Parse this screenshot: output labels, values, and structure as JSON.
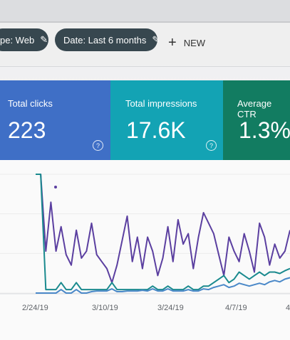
{
  "filters": {
    "type_chip": "pe: Web",
    "date_chip": "Date: Last 6 months",
    "new_button": "NEW"
  },
  "cards": [
    {
      "label": "Total clicks",
      "value": "223",
      "color": "#3f6fc6"
    },
    {
      "label": "Total impressions",
      "value": "17.6K",
      "color": "#13a3b4"
    },
    {
      "label": "Average CTR",
      "value": "1.3%",
      "color": "#127c61"
    }
  ],
  "chart_data": {
    "type": "line",
    "x_ticks": [
      "2/24/19",
      "3/10/19",
      "3/24/19",
      "4/7/19",
      "4"
    ],
    "series": [
      {
        "color": "#5b3fa0",
        "values": [
          170,
          170,
          60,
          130,
          60,
          95,
          55,
          40,
          90,
          50,
          60,
          100,
          55,
          45,
          35,
          15,
          40,
          75,
          110,
          45,
          80,
          35,
          80,
          60,
          25,
          50,
          95,
          45,
          105,
          70,
          85,
          35,
          80,
          115,
          100,
          85,
          55,
          25,
          80,
          60,
          45,
          85,
          60,
          30,
          100,
          80,
          40,
          70,
          50,
          60,
          90
        ]
      },
      {
        "color": "#1a8a8e",
        "values": [
          170,
          170,
          5,
          5,
          5,
          15,
          5,
          5,
          15,
          5,
          5,
          5,
          5,
          5,
          5,
          15,
          5,
          5,
          5,
          5,
          5,
          5,
          5,
          10,
          5,
          5,
          10,
          5,
          5,
          5,
          10,
          5,
          5,
          10,
          10,
          15,
          20,
          25,
          15,
          20,
          30,
          25,
          20,
          25,
          30,
          25,
          30,
          30,
          28,
          32,
          35
        ]
      },
      {
        "color": "#4a88c8",
        "values": [
          0,
          0,
          0,
          0,
          0,
          5,
          0,
          0,
          5,
          0,
          0,
          2,
          3,
          3,
          3,
          6,
          2,
          2,
          3,
          3,
          3,
          4,
          3,
          6,
          3,
          3,
          6,
          3,
          3,
          3,
          5,
          3,
          3,
          6,
          5,
          8,
          10,
          12,
          8,
          10,
          14,
          12,
          10,
          12,
          14,
          12,
          16,
          18,
          16,
          20,
          22
        ]
      }
    ]
  }
}
